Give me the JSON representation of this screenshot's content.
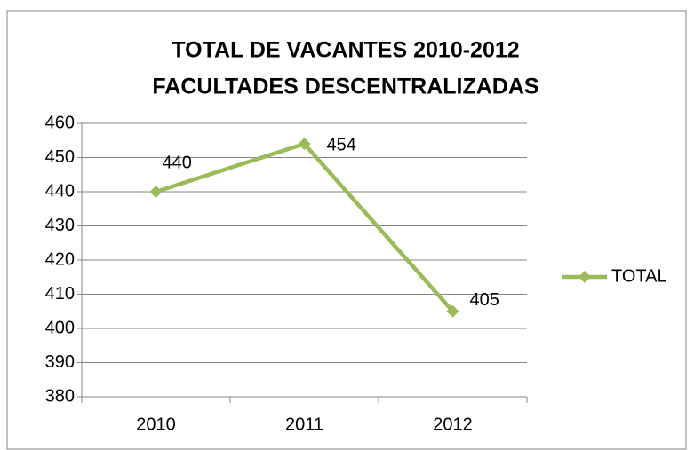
{
  "chart_data": {
    "type": "line",
    "title": [
      "TOTAL DE VACANTES 2010-2012",
      "FACULTADES DESCENTRALIZADAS"
    ],
    "categories": [
      "2010",
      "2011",
      "2012"
    ],
    "series": [
      {
        "name": "TOTAL",
        "color": "#9bbb59",
        "values": [
          440,
          454,
          405
        ]
      }
    ],
    "ylim": [
      380,
      460
    ],
    "yticks": [
      380,
      390,
      400,
      410,
      420,
      430,
      440,
      450,
      460
    ],
    "grid": true,
    "legend": "right",
    "data_labels": true
  }
}
